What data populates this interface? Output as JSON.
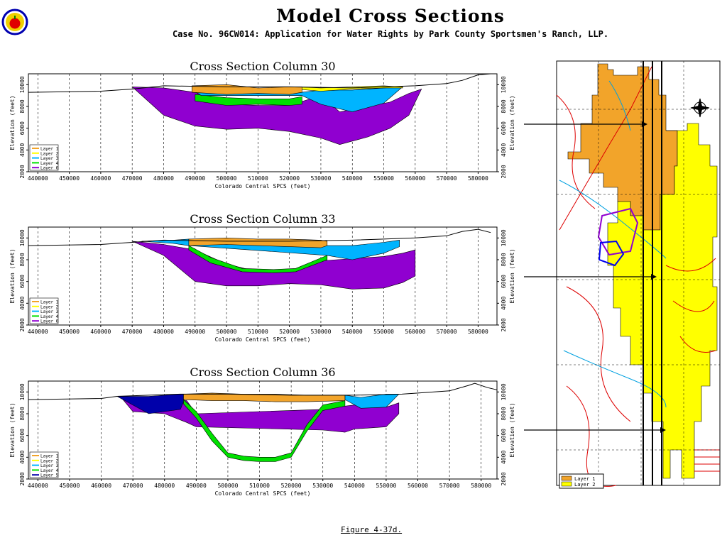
{
  "header": {
    "title": "Model Cross Sections",
    "subtitle": "Case No. 96CW014: Application for Water Rights by Park County Sportsmen's Ranch, LLP."
  },
  "figure_caption": "Figure 4-37d.",
  "map_panel": {
    "legend": [
      "Layer 1",
      "Layer 2"
    ],
    "colors": {
      "layer1": "#f2a42a",
      "layer2": "#ffff00"
    }
  },
  "colors": {
    "layer1": "#f2a42a",
    "layer2": "#ffff00",
    "layer3": "#00b4ff",
    "layer4": "#00e000",
    "layer5": "#0000aa",
    "layer6": "#9000d0"
  },
  "chart_data": [
    {
      "type": "area",
      "title": "Cross Section Column 30",
      "xlabel": "Colorado Central SPCS (feet)",
      "ylabel": "Elevation (feet)",
      "ylabel_right": "Elevation (feet)",
      "xlim": [
        437000,
        586000
      ],
      "ylim": [
        2000,
        11000
      ],
      "x_ticks": [
        440000,
        450000,
        460000,
        470000,
        480000,
        490000,
        500000,
        510000,
        520000,
        530000,
        540000,
        550000,
        560000,
        570000,
        580000
      ],
      "y_ticks": [
        2000,
        4000,
        6000,
        8000,
        10000
      ],
      "grid": "vertical dashed",
      "legend_position": "bottom-left",
      "legend": [
        "Layer 1",
        "Layer 2",
        "Layer 3",
        "Layer 4",
        "Layer 6"
      ],
      "surface": {
        "x": [
          437000,
          460000,
          470000,
          480000,
          500000,
          520000,
          540000,
          550000,
          560000,
          570000,
          575000,
          580000,
          584000
        ],
        "y": [
          9300,
          9400,
          9600,
          9900,
          9800,
          9800,
          9700,
          9800,
          9900,
          10100,
          10400,
          10900,
          11000
        ]
      },
      "layers": [
        {
          "name": "Layer 1",
          "x": [
            489000,
            500000,
            510000,
            520000,
            524000
          ],
          "top": [
            9900,
            10000,
            9700,
            9800,
            9800
          ],
          "bottom": [
            9300,
            9100,
            9200,
            9100,
            9300
          ]
        },
        {
          "name": "Layer 2",
          "x": [
            522000,
            530000,
            540000,
            550000,
            556000
          ],
          "top": [
            9800,
            9700,
            9800,
            9900,
            9800
          ],
          "bottom": [
            9600,
            9400,
            9600,
            9700,
            9700
          ]
        },
        {
          "name": "Layer 3",
          "x": [
            489000,
            492000,
            524000,
            530000,
            540000,
            550000,
            556000
          ],
          "top": [
            9800,
            9300,
            9300,
            9500,
            9500,
            9700,
            9800
          ],
          "bottom": [
            9600,
            9000,
            9000,
            8200,
            7500,
            8300,
            9800
          ]
        },
        {
          "name": "Layer 4",
          "x": [
            490000,
            500000,
            510000,
            520000,
            524000
          ],
          "top": [
            9100,
            8800,
            8700,
            8700,
            8900
          ],
          "bottom": [
            8500,
            8100,
            8200,
            8100,
            8200
          ]
        },
        {
          "name": "Layer 6",
          "x": [
            470000,
            480000,
            490000,
            500000,
            510000,
            520000,
            530000,
            536000,
            545000,
            552000,
            558000,
            562000
          ],
          "top": [
            9800,
            9700,
            9300,
            8200,
            8100,
            8100,
            9000,
            7500,
            8000,
            8400,
            9200,
            9600
          ],
          "bottom": [
            9800,
            7200,
            6200,
            5900,
            6000,
            5700,
            5100,
            4500,
            5200,
            6000,
            7200,
            9600
          ]
        }
      ]
    },
    {
      "type": "area",
      "title": "Cross Section Column 33",
      "xlabel": "Colorado Central SPCS (feet)",
      "ylabel": "Elevation (feet)",
      "ylabel_right": "Elevation (feet)",
      "xlim": [
        437000,
        586000
      ],
      "ylim": [
        2000,
        11000
      ],
      "x_ticks": [
        440000,
        450000,
        460000,
        470000,
        480000,
        490000,
        500000,
        510000,
        520000,
        530000,
        540000,
        550000,
        560000,
        570000,
        580000
      ],
      "y_ticks": [
        2000,
        4000,
        6000,
        8000,
        10000
      ],
      "grid": "vertical dashed",
      "legend_position": "bottom-left",
      "legend": [
        "Layer 1",
        "Layer 2",
        "Layer 3",
        "Layer 4",
        "Layer 6"
      ],
      "surface": {
        "x": [
          437000,
          460000,
          470000,
          480000,
          500000,
          520000,
          540000,
          550000,
          560000,
          570000,
          575000,
          580000,
          584000
        ],
        "y": [
          9300,
          9400,
          9600,
          9800,
          9700,
          9700,
          9800,
          9900,
          10000,
          10200,
          10600,
          10800,
          10500
        ]
      },
      "layers": [
        {
          "name": "Layer 1",
          "x": [
            488000,
            500000,
            510000,
            520000,
            530000,
            532000
          ],
          "top": [
            9900,
            10000,
            9900,
            9900,
            9800,
            9700
          ],
          "bottom": [
            9300,
            9400,
            9300,
            9200,
            9100,
            9300
          ]
        },
        {
          "name": "Layer 3",
          "x": [
            473000,
            483000,
            488000,
            532000,
            540000,
            550000,
            555000
          ],
          "top": [
            9700,
            9800,
            9900,
            9300,
            9300,
            9600,
            9800
          ],
          "bottom": [
            9700,
            9500,
            9300,
            8400,
            8000,
            8600,
            9200
          ]
        },
        {
          "name": "Layer 4",
          "x": [
            488000,
            495000,
            505000,
            515000,
            522000,
            532000
          ],
          "top": [
            9300,
            8200,
            7200,
            7100,
            7200,
            8400
          ],
          "bottom": [
            8900,
            7700,
            6900,
            6800,
            6900,
            8000
          ]
        },
        {
          "name": "Layer 6",
          "x": [
            470000,
            480000,
            490000,
            500000,
            510000,
            520000,
            530000,
            540000,
            550000,
            556000,
            560000
          ],
          "top": [
            9700,
            9400,
            8900,
            7600,
            6900,
            6900,
            7900,
            8100,
            8300,
            8600,
            8900
          ],
          "bottom": [
            9700,
            8400,
            6000,
            5600,
            5600,
            5800,
            5700,
            5300,
            5400,
            5900,
            6500
          ]
        }
      ]
    },
    {
      "type": "area",
      "title": "Cross Section Column 36",
      "xlabel": "Colorado Central SPCS (feet)",
      "ylabel": "Elevation (feet)",
      "ylabel_right": "Elevation (feet)",
      "xlim": [
        437000,
        585000
      ],
      "ylim": [
        2000,
        11000
      ],
      "x_ticks": [
        440000,
        450000,
        460000,
        470000,
        480000,
        490000,
        500000,
        510000,
        520000,
        530000,
        540000,
        550000,
        560000,
        570000,
        580000
      ],
      "y_ticks": [
        2000,
        4000,
        6000,
        8000,
        10000
      ],
      "grid": "vertical dashed",
      "legend_position": "bottom-left",
      "legend": [
        "Layer 1",
        "Layer 2",
        "Layer 3",
        "Layer 4",
        "Layer 5"
      ],
      "surface": {
        "x": [
          437000,
          460000,
          465000,
          475000,
          485000,
          500000,
          520000,
          540000,
          555000,
          560000,
          570000,
          576000,
          578000,
          582000,
          585000
        ],
        "y": [
          9300,
          9400,
          9600,
          9700,
          9800,
          9800,
          9700,
          9700,
          9800,
          9900,
          10100,
          10600,
          10800,
          10400,
          10200
        ]
      },
      "layers": [
        {
          "name": "Layer 1",
          "x": [
            486000,
            495000,
            505000,
            515000,
            525000,
            537000
          ],
          "top": [
            9800,
            9900,
            9800,
            9800,
            9700,
            9700
          ],
          "bottom": [
            9300,
            9200,
            9200,
            9100,
            9100,
            9200
          ]
        },
        {
          "name": "Layer 3",
          "x": [
            537000,
            542000,
            550000,
            554000
          ],
          "top": [
            9700,
            9500,
            9800,
            9800
          ],
          "bottom": [
            9300,
            8500,
            8600,
            9800
          ]
        },
        {
          "name": "Layer 4",
          "x": [
            486000,
            490000,
            495000,
            500000,
            505000,
            510000,
            515000,
            520000,
            525000,
            530000,
            537000
          ],
          "top": [
            9300,
            8200,
            6200,
            4400,
            4100,
            4000,
            4000,
            4400,
            7000,
            8800,
            9200
          ],
          "bottom": [
            8900,
            7600,
            5500,
            4000,
            3700,
            3600,
            3600,
            4000,
            6400,
            8300,
            8700
          ]
        },
        {
          "name": "Layer 5",
          "x": [
            465000,
            475000,
            485000,
            487000
          ],
          "top": [
            9600,
            9600,
            9800,
            9800
          ],
          "bottom": [
            9600,
            8000,
            8400,
            9800
          ]
        },
        {
          "name": "Layer 6",
          "x": [
            466000,
            470000,
            480000,
            487000,
            490000,
            530000,
            537000,
            540000,
            550000,
            554000
          ],
          "top": [
            9600,
            9500,
            9300,
            9200,
            8000,
            8400,
            8700,
            8800,
            8600,
            9000
          ],
          "bottom": [
            9600,
            8200,
            8000,
            7200,
            6800,
            6500,
            6300,
            6600,
            6800,
            8000
          ]
        }
      ]
    }
  ]
}
